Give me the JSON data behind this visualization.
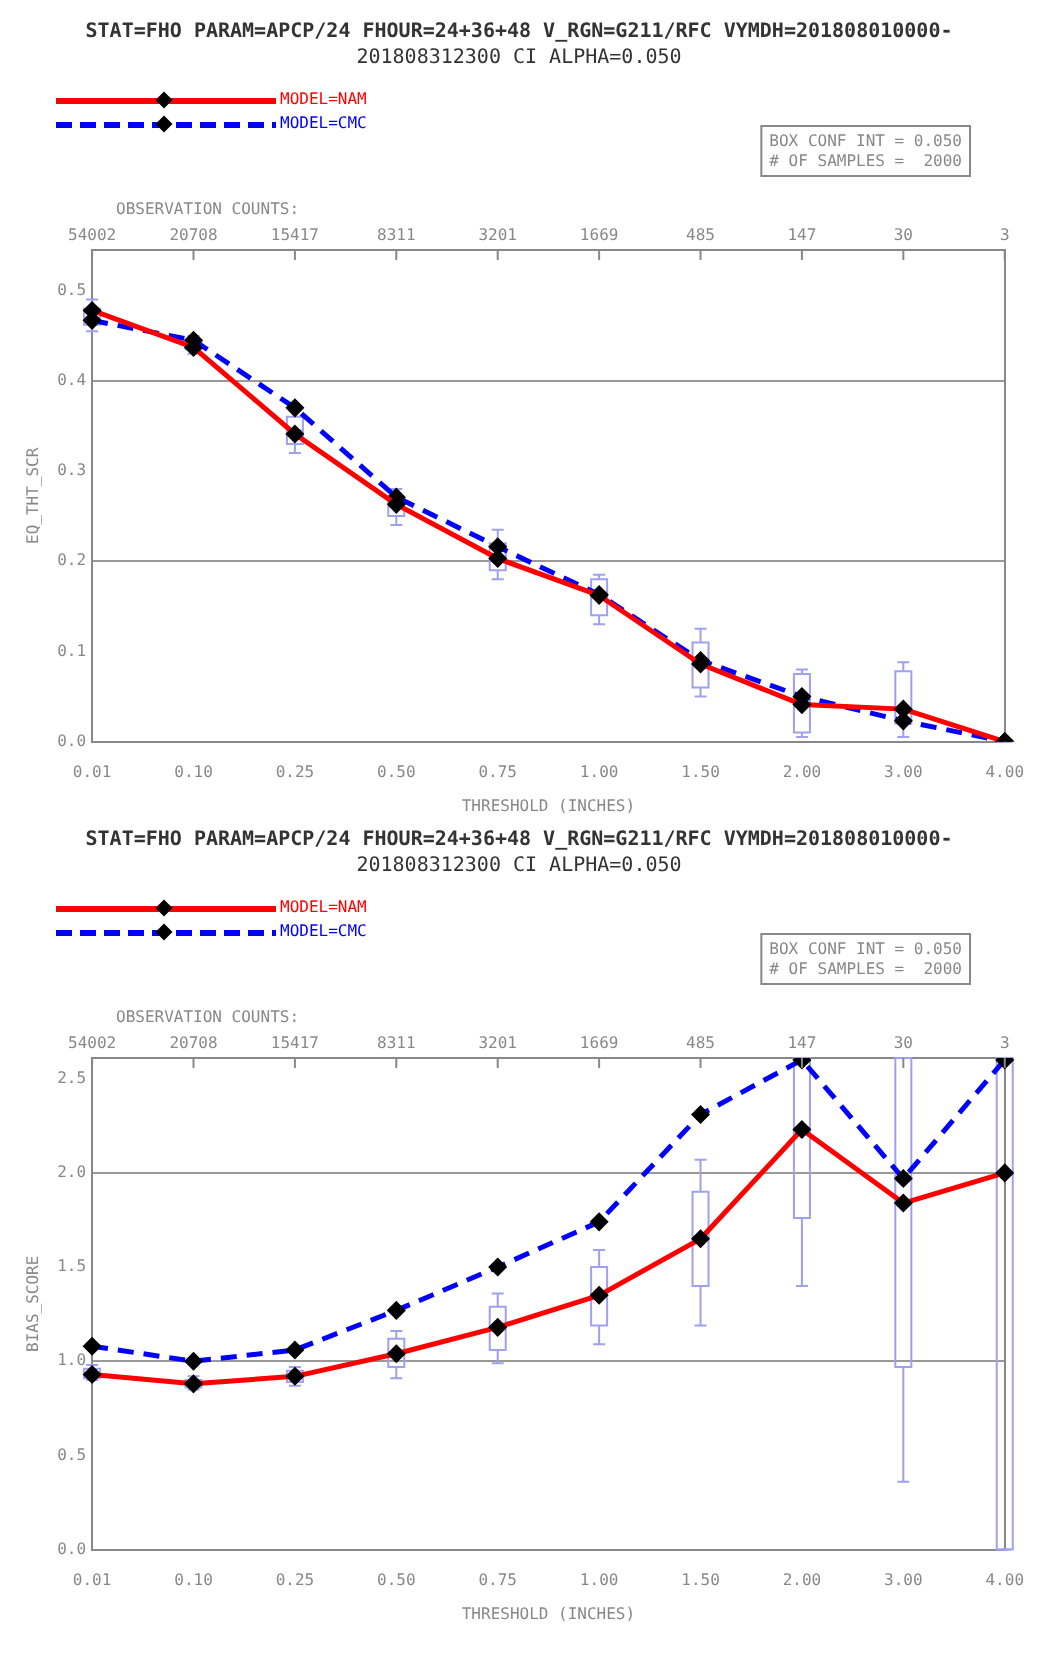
{
  "chart_data": [
    {
      "type": "line",
      "title": "STAT=FHO PARAM=APCP/24 FHOUR=24+36+48 V_RGN=G211/RFC VYMDH=201808010000-",
      "subtitle": "201808312300 CI ALPHA=0.050",
      "xlabel": "THRESHOLD (INCHES)",
      "ylabel": "EQ_THT_SCR",
      "categories": [
        "0.01",
        "0.10",
        "0.25",
        "0.50",
        "0.75",
        "1.00",
        "1.50",
        "2.00",
        "3.00",
        "4.00"
      ],
      "ylim": [
        0,
        0.545
      ],
      "yticks": [
        {
          "value": 0,
          "label": "0.0"
        },
        {
          "value": 0.1,
          "label": "0.1"
        },
        {
          "value": 0.2,
          "label": "0.2"
        },
        {
          "value": 0.3,
          "label": "0.3"
        },
        {
          "value": 0.4,
          "label": "0.4"
        },
        {
          "value": 0.5,
          "label": "0.5"
        }
      ],
      "grid": "y",
      "legend": "top left",
      "marker": "diamond",
      "series": [
        {
          "type": "box",
          "color": "#a0a0f0",
          "boxes": [
            {
              "low": 0.455,
              "q1": 0.462,
              "median": 0.47,
              "q3": 0.48,
              "high": 0.49
            },
            {
              "low": 0.43,
              "q1": 0.435,
              "median": 0.44,
              "q3": 0.445,
              "high": 0.45
            },
            {
              "low": 0.32,
              "q1": 0.33,
              "median": 0.345,
              "q3": 0.36,
              "high": 0.37
            },
            {
              "low": 0.24,
              "q1": 0.25,
              "median": 0.26,
              "q3": 0.27,
              "high": 0.28
            },
            {
              "low": 0.18,
              "q1": 0.19,
              "median": 0.205,
              "q3": 0.22,
              "high": 0.235
            },
            {
              "low": 0.13,
              "q1": 0.14,
              "median": 0.16,
              "q3": 0.18,
              "high": 0.185
            },
            {
              "low": 0.05,
              "q1": 0.06,
              "median": 0.085,
              "q3": 0.11,
              "high": 0.125
            },
            {
              "low": 0.005,
              "q1": 0.01,
              "median": 0.04,
              "q3": 0.075,
              "high": 0.08
            },
            {
              "low": 0.005,
              "q1": 0.02,
              "median": 0.035,
              "q3": 0.078,
              "high": 0.088
            },
            {
              "low": 0,
              "q1": 0,
              "median": 0,
              "q3": 0,
              "high": 0
            }
          ]
        },
        {
          "name": "MODEL=NAM",
          "color": "#ff0000",
          "line_style": "solid",
          "values": [
            0.478,
            0.437,
            0.341,
            0.263,
            0.203,
            0.162,
            0.086,
            0.041,
            0.036,
            0.0
          ]
        },
        {
          "name": "MODEL=CMC",
          "color": "#0000ff",
          "line_style": "dashed",
          "values": [
            0.467,
            0.445,
            0.37,
            0.271,
            0.216,
            0.163,
            0.09,
            0.05,
            0.023,
            0.0
          ]
        }
      ],
      "annotations": [
        "BOX CONF INT = 0.050",
        "# OF SAMPLES =  2000",
        "OBSERVATION COUNTS:",
        "54002",
        "20708",
        "15417",
        "8311",
        "3201",
        "1669",
        "485",
        "147",
        "30",
        "3"
      ]
    },
    {
      "type": "line",
      "title": "STAT=FHO PARAM=APCP/24 FHOUR=24+36+48 V_RGN=G211/RFC VYMDH=201808010000-",
      "subtitle": "201808312300 CI ALPHA=0.050",
      "xlabel": "THRESHOLD (INCHES)",
      "ylabel": "BIAS_SCORE",
      "categories": [
        "0.01",
        "0.10",
        "0.25",
        "0.50",
        "0.75",
        "1.00",
        "1.50",
        "2.00",
        "3.00",
        "4.00"
      ],
      "ylim": [
        0,
        2.61
      ],
      "yticks": [
        {
          "value": 0,
          "label": "0.0"
        },
        {
          "value": 0.5,
          "label": "0.5"
        },
        {
          "value": 1,
          "label": "1.0"
        },
        {
          "value": 1.5,
          "label": "1.5"
        },
        {
          "value": 2,
          "label": "2.0"
        },
        {
          "value": 2.5,
          "label": "2.5"
        }
      ],
      "grid": "y",
      "legend": "top left",
      "marker": "diamond",
      "series": [
        {
          "type": "box",
          "color": "#a0a0f0",
          "boxes": [
            {
              "low": 0.9,
              "q1": 0.91,
              "median": 0.93,
              "q3": 0.96,
              "high": 0.98
            },
            {
              "low": 0.85,
              "q1": 0.86,
              "median": 0.88,
              "q3": 0.9,
              "high": 0.92
            },
            {
              "low": 0.87,
              "q1": 0.89,
              "median": 0.92,
              "q3": 0.95,
              "high": 0.97
            },
            {
              "low": 0.91,
              "q1": 0.97,
              "median": 1.04,
              "q3": 1.12,
              "high": 1.16
            },
            {
              "low": 0.99,
              "q1": 1.06,
              "median": 1.18,
              "q3": 1.29,
              "high": 1.36
            },
            {
              "low": 1.09,
              "q1": 1.19,
              "median": 1.345,
              "q3": 1.5,
              "high": 1.59
            },
            {
              "low": 1.19,
              "q1": 1.4,
              "median": 1.65,
              "q3": 1.9,
              "high": 2.07
            },
            {
              "low": 1.4,
              "q1": 1.76,
              "median": 2.23,
              "q3": 2.61,
              "high": 2.61
            },
            {
              "low": 0.36,
              "q1": 0.97,
              "median": 1.83,
              "q3": 2.61,
              "high": 2.61
            },
            {
              "low": 0,
              "q1": 0,
              "median": 2.0,
              "q3": 2.61,
              "high": 2.61
            }
          ]
        },
        {
          "name": "MODEL=NAM",
          "color": "#ff0000",
          "line_style": "solid",
          "values": [
            0.93,
            0.88,
            0.92,
            1.04,
            1.18,
            1.35,
            1.65,
            2.23,
            1.84,
            2.0
          ]
        },
        {
          "name": "MODEL=CMC",
          "color": "#0000ff",
          "line_style": "dashed",
          "values": [
            1.08,
            1.0,
            1.06,
            1.27,
            1.5,
            1.74,
            2.31,
            2.6,
            1.97,
            2.6
          ]
        }
      ],
      "annotations": [
        "BOX CONF INT = 0.050",
        "# OF SAMPLES =  2000",
        "OBSERVATION COUNTS:",
        "54002",
        "20708",
        "15417",
        "8311",
        "3201",
        "1669",
        "485",
        "147",
        "30",
        "3"
      ]
    }
  ]
}
